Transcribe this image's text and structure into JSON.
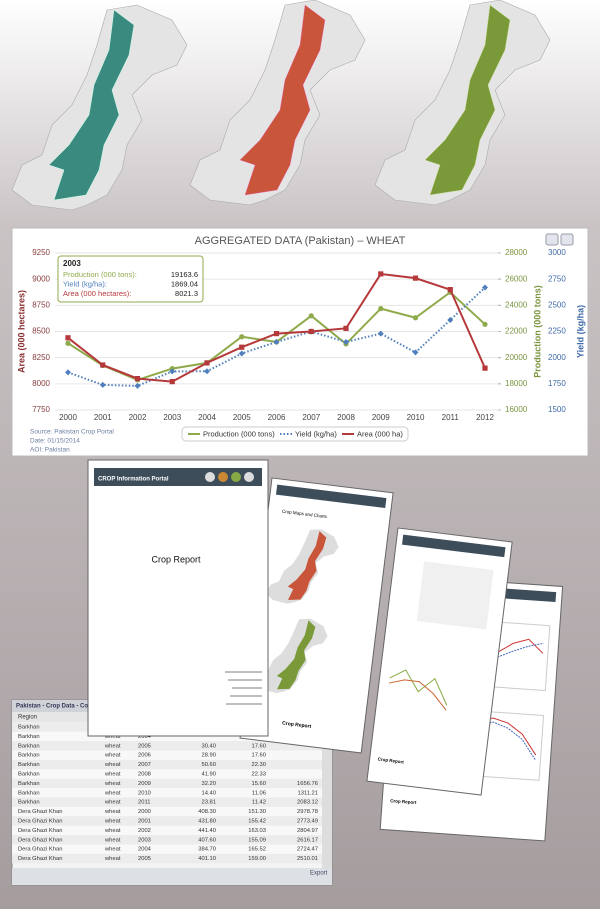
{
  "chart_data": {
    "type": "line",
    "title": "AGGREGATED DATA (Pakistan) – WHEAT",
    "categories": [
      "2000",
      "2001",
      "2002",
      "2003",
      "2004",
      "2005",
      "2006",
      "2007",
      "2008",
      "2009",
      "2010",
      "2011",
      "2012"
    ],
    "series": [
      {
        "name": "Production (000 tons)",
        "color": "#8faa4b",
        "axis": "y2",
        "marker": "circle",
        "dash": "solid",
        "values": [
          21100,
          19400,
          18300,
          19163.6,
          19600,
          21600,
          21200,
          23200,
          21050,
          23750,
          23050,
          25000,
          22550
        ]
      },
      {
        "name": "Yield (kg/ha)",
        "color": "#4f7fbd",
        "axis": "y3",
        "marker": "diamond",
        "dash": "dot",
        "values": [
          1860,
          1740,
          1730,
          1869.04,
          1870,
          2040,
          2150,
          2250,
          2150,
          2230,
          2050,
          2360,
          2670
        ]
      },
      {
        "name": "Area (000 ha)",
        "color": "#b5383a",
        "axis": "y",
        "marker": "square",
        "dash": "solid",
        "values": [
          8440,
          8180,
          8050,
          8021.3,
          8200,
          8350,
          8480,
          8500,
          8530,
          9050,
          9010,
          8900,
          8150
        ]
      }
    ],
    "ylabel": "Area (000 hectares)",
    "ylim": [
      7750,
      9250
    ],
    "yticks": [
      7750,
      8000,
      8250,
      8500,
      8750,
      9000,
      9250
    ],
    "y2label": "Production (000 tons)",
    "y2lim": [
      16000,
      28000
    ],
    "y2ticks": [
      16000,
      18000,
      20000,
      22000,
      24000,
      26000,
      28000
    ],
    "y3label": "Yield (kg/ha)",
    "y3lim": [
      1500,
      3000
    ],
    "y3ticks": [
      1500,
      1750,
      2000,
      2250,
      2500,
      2750,
      3000
    ],
    "grid": true,
    "tooltip": {
      "index": 3,
      "labels": [
        "Production (000 tons):",
        "Yield (kg/ha):",
        "Area (000 hectares):"
      ]
    },
    "notes": [
      "Source: Pakistan Crop Portal",
      "Date: 01/15/2014",
      "AOI: Pakistan"
    ]
  },
  "reports": [
    {
      "header": "CROP Information Portal",
      "title": "Crop Report"
    },
    {
      "heading": "Crop Maps and Charts",
      "footer": "Crop Report"
    },
    {
      "footer": "Crop Report"
    },
    {
      "footer": "Crop Report"
    }
  ],
  "table": {
    "title": "Pakistan - Crop Data - Co",
    "header": "Region",
    "button": "Export",
    "rows": [
      [
        "Barkhan",
        "wheat",
        "2000"
      ],
      [
        "Barkhan",
        "wheat",
        "2004"
      ],
      [
        "Barkhan",
        "wheat",
        "2005",
        "30.40",
        "17.60"
      ],
      [
        "Barkhan",
        "wheat",
        "2006",
        "28.90",
        "17.60"
      ],
      [
        "Barkhan",
        "wheat",
        "2007",
        "50.60",
        "22.30"
      ],
      [
        "Barkhan",
        "wheat",
        "2008",
        "41.90",
        "22.33"
      ],
      [
        "Barkhan",
        "wheat",
        "2009",
        "32.20",
        "15.60",
        "1656.76"
      ],
      [
        "Barkhan",
        "wheat",
        "2010",
        "14.40",
        "11.06",
        "1311.21"
      ],
      [
        "Barkhan",
        "wheat",
        "2011",
        "23.81",
        "11.42",
        "2083.12"
      ],
      [
        "Dera Ghazi Khan",
        "wheat",
        "2000",
        "408.30",
        "151.30",
        "2978.78"
      ],
      [
        "Dera Ghazi Khan",
        "wheat",
        "2001",
        "431.80",
        "155.42",
        "2773.49"
      ],
      [
        "Dera Ghazi Khan",
        "wheat",
        "2002",
        "441.40",
        "163.03",
        "2804.97"
      ],
      [
        "Dera Ghazi Khan",
        "wheat",
        "2003",
        "407.60",
        "155.09",
        "2616.17"
      ],
      [
        "Dera Ghazi Khan",
        "wheat",
        "2004",
        "384.70",
        "165.52",
        "2724.47"
      ],
      [
        "Dera Ghazi Khan",
        "wheat",
        "2005",
        "401.10",
        "159.00",
        "2510.01"
      ]
    ]
  }
}
